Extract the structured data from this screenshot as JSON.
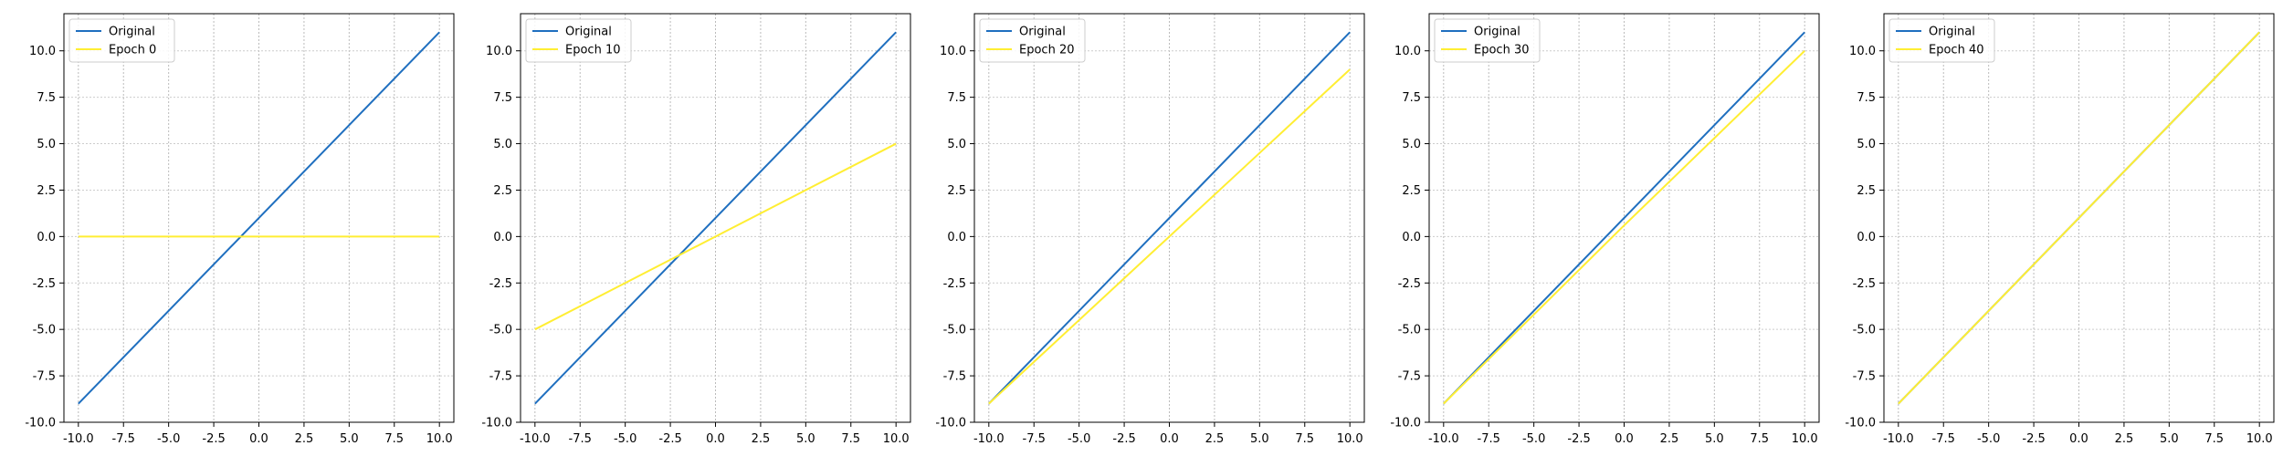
{
  "colors": {
    "original": "#1f6fbf",
    "trained": "#ffee33",
    "grid_x": "#bbbbbb",
    "grid_y": "#cccccc",
    "axis": "#000000",
    "legend_border": "#cccccc"
  },
  "chart_data": [
    {
      "type": "line",
      "x": [
        -10,
        10
      ],
      "series": [
        {
          "name": "Original",
          "values": [
            -9,
            11
          ]
        },
        {
          "name": "Epoch 0",
          "values": [
            0,
            0
          ]
        }
      ],
      "xlim": [
        -10.8,
        10.8
      ],
      "ylim": [
        -10,
        12
      ],
      "xticks": [
        "-10.0",
        "-7.5",
        "-5.0",
        "-2.5",
        "0.0",
        "2.5",
        "5.0",
        "7.5",
        "10.0"
      ],
      "yticks": [
        "-10.0",
        "-7.5",
        "-5.0",
        "-2.5",
        "0.0",
        "2.5",
        "5.0",
        "7.5",
        "10.0"
      ],
      "grid": true,
      "legend": "upper-left"
    },
    {
      "type": "line",
      "x": [
        -10,
        10
      ],
      "series": [
        {
          "name": "Original",
          "values": [
            -9,
            11
          ]
        },
        {
          "name": "Epoch 10",
          "values": [
            -5,
            5
          ]
        }
      ],
      "xlim": [
        -10.8,
        10.8
      ],
      "ylim": [
        -10,
        12
      ],
      "xticks": [
        "-10.0",
        "-7.5",
        "-5.0",
        "-2.5",
        "0.0",
        "2.5",
        "5.0",
        "7.5",
        "10.0"
      ],
      "yticks": [
        "-10.0",
        "-7.5",
        "-5.0",
        "-2.5",
        "0.0",
        "2.5",
        "5.0",
        "7.5",
        "10.0"
      ],
      "grid": true,
      "legend": "upper-left"
    },
    {
      "type": "line",
      "x": [
        -10,
        0,
        10
      ],
      "series": [
        {
          "name": "Original",
          "values": [
            -9,
            1,
            11
          ]
        },
        {
          "name": "Epoch 20",
          "values": [
            -9,
            0,
            9
          ]
        }
      ],
      "xlim": [
        -10.8,
        10.8
      ],
      "ylim": [
        -10,
        12
      ],
      "xticks": [
        "-10.0",
        "-7.5",
        "-5.0",
        "-2.5",
        "0.0",
        "2.5",
        "5.0",
        "7.5",
        "10.0"
      ],
      "yticks": [
        "-10.0",
        "-7.5",
        "-5.0",
        "-2.5",
        "0.0",
        "2.5",
        "5.0",
        "7.5",
        "10.0"
      ],
      "grid": true,
      "legend": "upper-left"
    },
    {
      "type": "line",
      "x": [
        -10,
        0,
        10
      ],
      "series": [
        {
          "name": "Original",
          "values": [
            -9,
            1,
            11
          ]
        },
        {
          "name": "Epoch 30",
          "values": [
            -9,
            0.6,
            10
          ]
        }
      ],
      "xlim": [
        -10.8,
        10.8
      ],
      "ylim": [
        -10,
        12
      ],
      "xticks": [
        "-10.0",
        "-7.5",
        "-5.0",
        "-2.5",
        "0.0",
        "2.5",
        "5.0",
        "7.5",
        "10.0"
      ],
      "yticks": [
        "-10.0",
        "-7.5",
        "-5.0",
        "-2.5",
        "0.0",
        "2.5",
        "5.0",
        "7.5",
        "10.0"
      ],
      "grid": true,
      "legend": "upper-left"
    },
    {
      "type": "line",
      "x": [
        -10,
        10
      ],
      "series": [
        {
          "name": "Original",
          "values": [
            -9,
            11
          ]
        },
        {
          "name": "Epoch 40",
          "values": [
            -9,
            11
          ]
        }
      ],
      "xlim": [
        -10.8,
        10.8
      ],
      "ylim": [
        -10,
        12
      ],
      "xticks": [
        "-10.0",
        "-7.5",
        "-5.0",
        "-2.5",
        "0.0",
        "2.5",
        "5.0",
        "7.5",
        "10.0"
      ],
      "yticks": [
        "-10.0",
        "-7.5",
        "-5.0",
        "-2.5",
        "0.0",
        "2.5",
        "5.0",
        "7.5",
        "10.0"
      ],
      "grid": true,
      "legend": "upper-left"
    }
  ]
}
